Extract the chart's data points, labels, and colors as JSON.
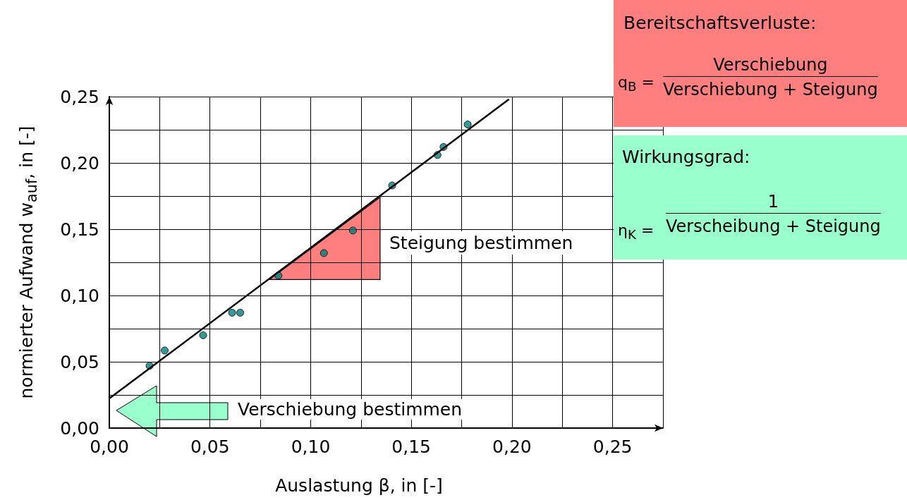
{
  "chart_data": {
    "type": "scatter",
    "xlabel": "Auslastung β, in [-]",
    "ylabel": "normierter Aufwand w$_{auf}$, in [-]",
    "xlim": [
      0,
      0.275
    ],
    "ylim": [
      0,
      0.25
    ],
    "xticks": [
      {
        "value": 0,
        "label": "0,00"
      },
      {
        "value": 0.025,
        "label": null
      },
      {
        "value": 0.05,
        "label": "0,05"
      },
      {
        "value": 0.075,
        "label": null
      },
      {
        "value": 0.1,
        "label": "0,10"
      },
      {
        "value": 0.125,
        "label": null
      },
      {
        "value": 0.15,
        "label": "0,15"
      },
      {
        "value": 0.175,
        "label": null
      },
      {
        "value": 0.2,
        "label": "0,20"
      },
      {
        "value": 0.225,
        "label": null
      },
      {
        "value": 0.25,
        "label": "0,25"
      },
      {
        "value": 0.275,
        "label": null
      }
    ],
    "yticks": [
      {
        "value": 0,
        "label": "0,00"
      },
      {
        "value": 0.025,
        "label": null
      },
      {
        "value": 0.05,
        "label": "0,05"
      },
      {
        "value": 0.075,
        "label": null
      },
      {
        "value": 0.1,
        "label": "0,10"
      },
      {
        "value": 0.125,
        "label": null
      },
      {
        "value": 0.15,
        "label": "0,15"
      },
      {
        "value": 0.175,
        "label": null
      },
      {
        "value": 0.2,
        "label": "0,20"
      },
      {
        "value": 0.225,
        "label": null
      },
      {
        "value": 0.25,
        "label": "0,25"
      }
    ],
    "grid": true,
    "series": [
      {
        "marker": "circle",
        "color": "#008080",
        "x": [
          0.02,
          0.0275,
          0.0466,
          0.061,
          0.065,
          0.084,
          0.1066,
          0.121,
          0.1405,
          0.163,
          0.166,
          0.178
        ],
        "values": [
          0.047,
          0.0585,
          0.07,
          0.087,
          0.087,
          0.115,
          0.132,
          0.149,
          0.183,
          0.206,
          0.212,
          0.229
        ]
      },
      {
        "type": "line",
        "marker": "none",
        "color": "#000000",
        "line_style": "solid",
        "x": [
          0,
          0.1985
        ],
        "values": [
          0.0223,
          0.248
        ]
      }
    ],
    "annotations": [
      "Steigung bestimmen",
      "Verschiebung bestimmen",
      "Bereitschaftsverluste:",
      "q$_{B}$ =",
      "Verschiebung",
      "Verschiebung + Steigung",
      "Wirkungsgrad:",
      "η$_{K}$ =",
      "1",
      "Verscheibung + Steigung"
    ]
  }
}
